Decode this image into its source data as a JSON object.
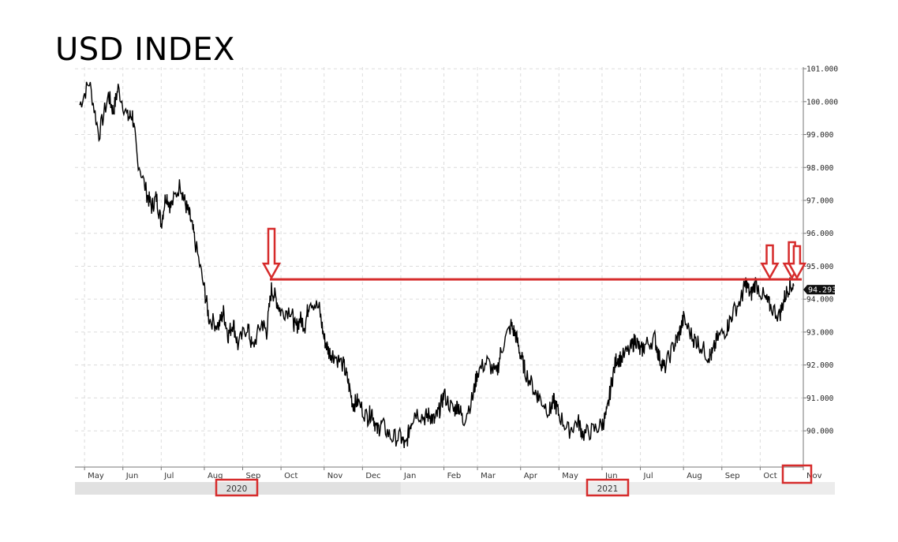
{
  "title": "USD INDEX",
  "chart_data": {
    "type": "line",
    "title": "USD INDEX",
    "ylim": [
      88.9,
      101.05
    ],
    "x_ticks": [
      "May",
      "Jun",
      "Jul",
      "Aug",
      "Sep",
      "Oct",
      "Nov",
      "Dec",
      "Jan",
      "Feb",
      "Mar",
      "Apr",
      "May",
      "Jun",
      "Jul",
      "Aug",
      "Sep",
      "Oct",
      "Nov"
    ],
    "y_ticks": [
      "90.000",
      "91.000",
      "92.000",
      "93.000",
      "94.000",
      "95.000",
      "96.000",
      "97.000",
      "98.000",
      "99.000",
      "100.000",
      "101.000"
    ],
    "years": [
      "2020",
      "2021"
    ],
    "last_price_label": "94.293",
    "resistance_level": 94.6,
    "annotated_peaks": [
      "Sep",
      "Oct",
      "Oct",
      "Nov"
    ],
    "highlighted_labels": [
      "2020",
      "2021",
      "Nov"
    ],
    "grid": true,
    "series": [
      {
        "values": [
          [
            2020.33,
            99.9
          ],
          [
            2020.35,
            100.6
          ],
          [
            2020.37,
            99.0
          ],
          [
            2020.39,
            100.2
          ],
          [
            2020.4,
            99.7
          ],
          [
            2020.41,
            100.4
          ],
          [
            2020.43,
            99.5
          ],
          [
            2020.44,
            99.6
          ],
          [
            2020.45,
            98.3
          ],
          [
            2020.47,
            97.2
          ],
          [
            2020.48,
            96.8
          ],
          [
            2020.49,
            97.1
          ],
          [
            2020.5,
            96.3
          ],
          [
            2020.51,
            97.2
          ],
          [
            2020.52,
            96.8
          ],
          [
            2020.54,
            97.5
          ],
          [
            2020.55,
            96.9
          ],
          [
            2020.56,
            96.5
          ],
          [
            2020.57,
            95.8
          ],
          [
            2020.59,
            94.3
          ],
          [
            2020.6,
            93.4
          ],
          [
            2020.62,
            93.2
          ],
          [
            2020.63,
            93.6
          ],
          [
            2020.64,
            92.9
          ],
          [
            2020.65,
            93.3
          ],
          [
            2020.66,
            92.6
          ],
          [
            2020.68,
            93.2
          ],
          [
            2020.69,
            92.5
          ],
          [
            2020.71,
            93.3
          ],
          [
            2020.72,
            93.0
          ],
          [
            2020.73,
            94.3
          ],
          [
            2020.74,
            94.0
          ],
          [
            2020.75,
            93.6
          ],
          [
            2020.77,
            93.7
          ],
          [
            2020.78,
            93.1
          ],
          [
            2020.79,
            93.4
          ],
          [
            2020.8,
            93.2
          ],
          [
            2020.81,
            94.0
          ],
          [
            2020.83,
            93.7
          ],
          [
            2020.84,
            92.8
          ],
          [
            2020.85,
            92.4
          ],
          [
            2020.86,
            92.3
          ],
          [
            2020.88,
            92.0
          ],
          [
            2020.89,
            91.5
          ],
          [
            2020.9,
            90.8
          ],
          [
            2020.91,
            90.9
          ],
          [
            2020.93,
            90.4
          ],
          [
            2020.94,
            90.6
          ],
          [
            2020.95,
            90.0
          ],
          [
            2020.96,
            90.2
          ],
          [
            2020.98,
            89.8
          ],
          [
            2021.0,
            89.8
          ],
          [
            2021.01,
            89.5
          ],
          [
            2021.02,
            90.2
          ],
          [
            2021.03,
            90.6
          ],
          [
            2021.05,
            90.4
          ],
          [
            2021.06,
            90.5
          ],
          [
            2021.07,
            90.3
          ],
          [
            2021.08,
            90.6
          ],
          [
            2021.09,
            91.1
          ],
          [
            2021.11,
            90.6
          ],
          [
            2021.12,
            90.8
          ],
          [
            2021.13,
            90.3
          ],
          [
            2021.15,
            91.0
          ],
          [
            2021.16,
            91.8
          ],
          [
            2021.18,
            92.1
          ],
          [
            2021.2,
            91.7
          ],
          [
            2021.21,
            92.5
          ],
          [
            2021.23,
            93.2
          ],
          [
            2021.24,
            92.9
          ],
          [
            2021.25,
            92.3
          ],
          [
            2021.26,
            91.8
          ],
          [
            2021.28,
            91.2
          ],
          [
            2021.29,
            91.0
          ],
          [
            2021.31,
            90.6
          ],
          [
            2021.32,
            90.9
          ],
          [
            2021.33,
            90.5
          ],
          [
            2021.35,
            90.0
          ],
          [
            2021.37,
            90.3
          ],
          [
            2021.38,
            89.9
          ],
          [
            2021.4,
            90.0
          ],
          [
            2021.42,
            90.2
          ],
          [
            2021.43,
            90.5
          ],
          [
            2021.44,
            91.5
          ],
          [
            2021.45,
            92.2
          ],
          [
            2021.46,
            92.2
          ],
          [
            2021.48,
            92.5
          ],
          [
            2021.49,
            92.8
          ],
          [
            2021.5,
            92.4
          ],
          [
            2021.51,
            92.6
          ],
          [
            2021.53,
            92.8
          ],
          [
            2021.54,
            92.2
          ],
          [
            2021.55,
            91.9
          ],
          [
            2021.57,
            92.6
          ],
          [
            2021.58,
            92.9
          ],
          [
            2021.59,
            93.4
          ],
          [
            2021.61,
            92.8
          ],
          [
            2021.62,
            92.7
          ],
          [
            2021.64,
            92.3
          ],
          [
            2021.65,
            92.3
          ],
          [
            2021.66,
            92.8
          ],
          [
            2021.68,
            93.1
          ],
          [
            2021.69,
            93.5
          ],
          [
            2021.71,
            94.0
          ],
          [
            2021.72,
            94.5
          ],
          [
            2021.73,
            94.1
          ],
          [
            2021.74,
            94.5
          ],
          [
            2021.76,
            94.0
          ],
          [
            2021.77,
            93.8
          ],
          [
            2021.79,
            93.5
          ],
          [
            2021.8,
            94.0
          ],
          [
            2021.81,
            94.4
          ],
          [
            2021.82,
            94.4
          ]
        ]
      }
    ]
  }
}
